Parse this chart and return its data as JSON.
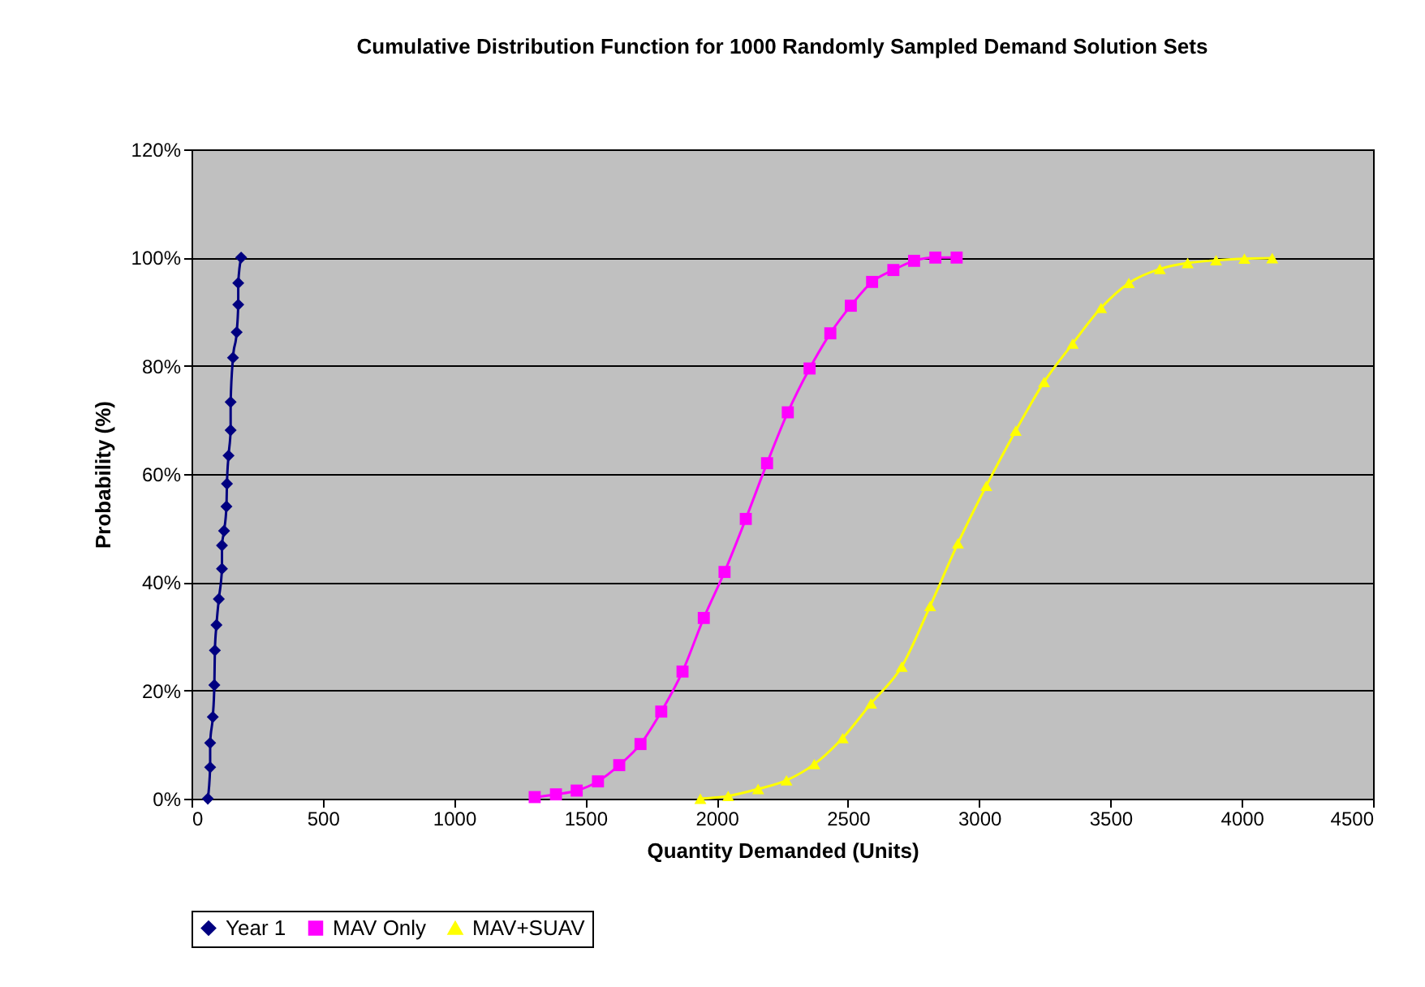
{
  "chart_data": {
    "type": "line",
    "title": "Cumulative Distribution Function for 1000 Randomly Sampled Demand Solution Sets",
    "xlabel": "Quantity Demanded (Units)",
    "ylabel": "Probability (%)",
    "xlim": [
      0,
      4500
    ],
    "xticks": [
      0,
      500,
      1000,
      1500,
      2000,
      2500,
      3000,
      3500,
      4000,
      4500
    ],
    "ylim": [
      0,
      120
    ],
    "yticks": [
      {
        "value": 0,
        "label": "0%"
      },
      {
        "value": 20,
        "label": "20%"
      },
      {
        "value": 40,
        "label": "40%"
      },
      {
        "value": 60,
        "label": "60%"
      },
      {
        "value": 80,
        "label": "80%"
      },
      {
        "value": 100,
        "label": "100%"
      },
      {
        "value": 120,
        "label": "120%"
      }
    ],
    "grid": "y",
    "legend": "bottom",
    "line_style": "solid",
    "series": [
      {
        "name": "Year 1",
        "color": "#000080",
        "marker": "diamond",
        "x": [
          62,
          71,
          71,
          81,
          87,
          89,
          95,
          104,
          116,
          116,
          124,
          133,
          135,
          141,
          149,
          149,
          158,
          172,
          178,
          178,
          189
        ],
        "values": [
          0,
          5.8,
          10.3,
          15.1,
          21,
          27.4,
          32.1,
          36.9,
          42.5,
          46.8,
          49.5,
          54,
          58.2,
          63.4,
          68.1,
          73.3,
          81.5,
          86.2,
          91.3,
          95.3,
          100
        ]
      },
      {
        "name": "MAV Only",
        "color": "#ff00ff",
        "marker": "square",
        "x": [
          1307,
          1388,
          1467,
          1548,
          1629,
          1710,
          1789,
          1870,
          1951,
          2030,
          2111,
          2192,
          2271,
          2354,
          2433,
          2511,
          2592,
          2673,
          2752,
          2833,
          2914
        ],
        "values": [
          0.3,
          0.8,
          1.5,
          3.2,
          6.2,
          10.1,
          16.1,
          23.5,
          33.4,
          41.9,
          51.7,
          62,
          71.4,
          79.5,
          86,
          91.1,
          95.5,
          97.7,
          99.4,
          100,
          100
        ]
      },
      {
        "name": "MAV+SUAV",
        "color": "#ffff00",
        "marker": "triangle",
        "x": [
          1938,
          2044,
          2158,
          2266,
          2372,
          2480,
          2588,
          2705,
          2813,
          2919,
          3027,
          3139,
          3247,
          3356,
          3464,
          3570,
          3688,
          3794,
          3902,
          4010,
          4116
        ],
        "values": [
          0,
          0.5,
          1.8,
          3.4,
          6.4,
          11.2,
          17.6,
          24.4,
          35.6,
          47.2,
          57.8,
          68,
          77,
          84.1,
          90.7,
          95.3,
          97.9,
          99,
          99.5,
          99.8,
          99.9
        ]
      }
    ]
  }
}
